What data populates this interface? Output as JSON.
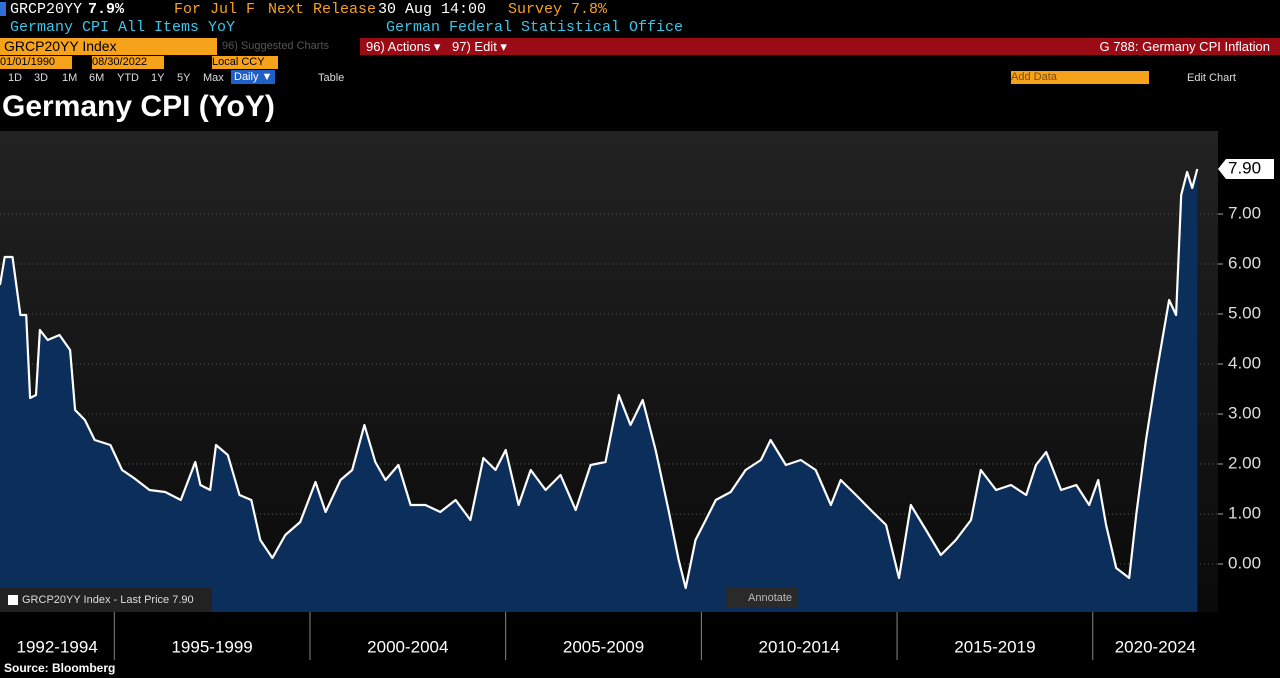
{
  "terminal": {
    "ticker": "GRCP20YY",
    "last": "7.9%",
    "period": "For Jul F",
    "next_release": "Next Release",
    "release_time": "30 Aug 14:00",
    "survey": "Survey 7.8%",
    "description": "Germany CPI All Items YoY",
    "source_org": "German Federal Statistical Office",
    "index": "GRCP20YY Index",
    "suggested": "96) Suggested Charts",
    "actions": "96) Actions ▾",
    "edit": "97) Edit ▾",
    "page": "G 788: Germany CPI Inflation",
    "start_date": "01/01/1990",
    "end_date": "08/30/2022",
    "currency": "Local CCY",
    "ranges": [
      "1D",
      "3D",
      "1M",
      "6M",
      "YTD",
      "1Y",
      "5Y",
      "Max"
    ],
    "frequency": "Daily ▼",
    "table": "Table",
    "add_data": "Add Data",
    "edit_chart": "Edit Chart"
  },
  "chart_data": {
    "type": "line",
    "title": "Germany CPI (YoY)",
    "source": "Source: Bloomberg",
    "annotate": "Annotate",
    "legend": "GRCP20YY Index - Last Price 7.90",
    "last_price_label": "7.90",
    "color": "#ffffff",
    "fill_color": "#0b2f5a",
    "grid": true,
    "xlim": [
      1992.08,
      2023.2
    ],
    "ylim": [
      -0.96,
      8.66
    ],
    "yticks": [
      {
        "value": 0,
        "label": "0.00"
      },
      {
        "value": 1,
        "label": "1.00"
      },
      {
        "value": 2,
        "label": "2.00"
      },
      {
        "value": 3,
        "label": "3.00"
      },
      {
        "value": 4,
        "label": "4.00"
      },
      {
        "value": 5,
        "label": "5.00"
      },
      {
        "value": 6,
        "label": "6.00"
      },
      {
        "value": 7,
        "label": "7.00"
      }
    ],
    "periods": [
      {
        "label": "1992-1994",
        "start": 1992,
        "end": 1995
      },
      {
        "label": "1995-1999",
        "start": 1995,
        "end": 2000
      },
      {
        "label": "2000-2004",
        "start": 2000,
        "end": 2005
      },
      {
        "label": "2005-2009",
        "start": 2005,
        "end": 2010
      },
      {
        "label": "2010-2014",
        "start": 2010,
        "end": 2015
      },
      {
        "label": "2015-2019",
        "start": 2015,
        "end": 2020
      },
      {
        "label": "2020-2024",
        "start": 2020,
        "end": 2025
      }
    ],
    "x": [
      1992.08,
      1992.2,
      1992.4,
      1992.6,
      1992.75,
      1992.85,
      1993.0,
      1993.1,
      1993.3,
      1993.6,
      1993.87,
      1994.0,
      1994.25,
      1994.5,
      1994.9,
      1995.2,
      1995.5,
      1995.9,
      1996.3,
      1996.7,
      1997.07,
      1997.2,
      1997.45,
      1997.6,
      1997.9,
      1998.2,
      1998.5,
      1998.73,
      1999.04,
      1999.37,
      1999.75,
      2000.14,
      2000.4,
      2000.78,
      2001.08,
      2001.39,
      2001.67,
      2001.93,
      2002.26,
      2002.57,
      2002.95,
      2003.33,
      2003.72,
      2004.1,
      2004.43,
      2004.74,
      2005.0,
      2005.33,
      2005.64,
      2006.02,
      2006.4,
      2006.79,
      2007.17,
      2007.55,
      2007.89,
      2008.19,
      2008.5,
      2008.83,
      2009.16,
      2009.42,
      2009.6,
      2009.85,
      2010.11,
      2010.37,
      2010.75,
      2011.13,
      2011.52,
      2011.77,
      2012.16,
      2012.54,
      2012.92,
      2013.31,
      2013.56,
      2013.95,
      2014.33,
      2014.72,
      2015.05,
      2015.35,
      2015.74,
      2016.12,
      2016.5,
      2016.89,
      2017.14,
      2017.53,
      2017.91,
      2018.3,
      2018.55,
      2018.81,
      2019.19,
      2019.58,
      2019.91,
      2020.14,
      2020.34,
      2020.6,
      2020.93,
      2021.11,
      2021.36,
      2021.62,
      2021.95,
      2022.13,
      2022.26,
      2022.41,
      2022.54,
      2022.67
    ],
    "values": [
      5.58,
      6.14,
      6.14,
      4.98,
      4.98,
      3.32,
      3.38,
      4.68,
      4.48,
      4.58,
      4.28,
      3.08,
      2.88,
      2.48,
      2.38,
      1.88,
      1.72,
      1.48,
      1.44,
      1.28,
      2.04,
      1.58,
      1.48,
      2.38,
      2.18,
      1.38,
      1.28,
      0.48,
      0.12,
      0.58,
      0.84,
      1.64,
      1.04,
      1.68,
      1.88,
      2.78,
      2.04,
      1.68,
      1.98,
      1.18,
      1.18,
      1.04,
      1.28,
      0.88,
      2.12,
      1.88,
      2.28,
      1.18,
      1.88,
      1.48,
      1.78,
      1.08,
      1.98,
      2.04,
      3.38,
      2.78,
      3.28,
      2.28,
      1.08,
      0.08,
      -0.48,
      0.48,
      0.88,
      1.28,
      1.44,
      1.88,
      2.08,
      2.48,
      1.98,
      2.08,
      1.88,
      1.18,
      1.68,
      1.38,
      1.08,
      0.78,
      -0.28,
      1.18,
      0.68,
      0.18,
      0.48,
      0.88,
      1.88,
      1.48,
      1.58,
      1.38,
      1.98,
      2.24,
      1.48,
      1.58,
      1.18,
      1.68,
      0.78,
      -0.08,
      -0.28,
      0.98,
      2.48,
      3.78,
      5.28,
      4.98,
      7.38,
      7.84,
      7.52,
      7.9
    ]
  }
}
